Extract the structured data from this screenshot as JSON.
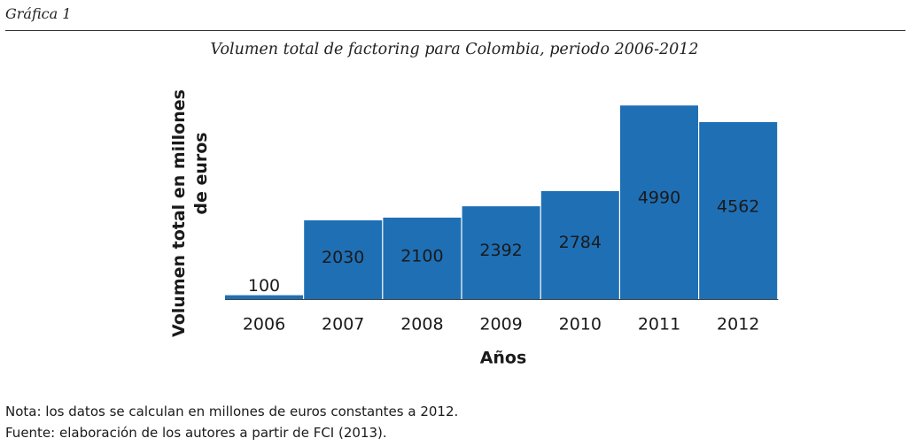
{
  "figure_label": "Gráfica 1",
  "notes": {
    "nota": "Nota: los datos se calculan en millones de euros constantes a 2012.",
    "fuente": "Fuente: elaboración de los autores a partir de FCI (2013)."
  },
  "colors": {
    "bar": "#1f6fb5",
    "bar_label": "#1a1a1a",
    "axis": "#444444"
  },
  "chart_data": {
    "type": "bar",
    "title": "Volumen total de factoring para Colombia, periodo 2006-2012",
    "xlabel": "Años",
    "ylabel_lines": [
      "Volumen total en millones",
      "de euros"
    ],
    "categories": [
      "2006",
      "2007",
      "2008",
      "2009",
      "2010",
      "2011",
      "2012"
    ],
    "values": [
      100,
      2030,
      2100,
      2392,
      2784,
      4990,
      4562
    ],
    "ylim": [
      0,
      5200
    ],
    "grid": false,
    "legend": "none"
  }
}
